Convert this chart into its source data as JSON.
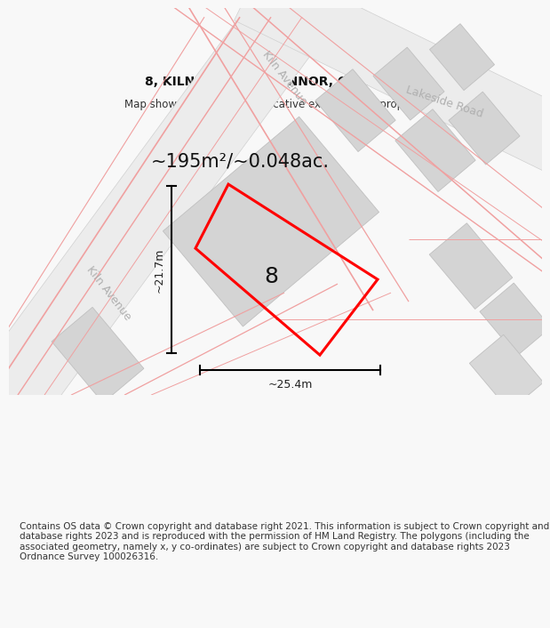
{
  "title": "8, KILN AVENUE, CHINNOR, OX39 4BZ",
  "subtitle": "Map shows position and indicative extent of the property.",
  "footer": "Contains OS data © Crown copyright and database right 2021. This information is subject to Crown copyright and database rights 2023 and is reproduced with the permission of HM Land Registry. The polygons (including the associated geometry, namely x, y co-ordinates) are subject to Crown copyright and database rights 2023 Ordnance Survey 100026316.",
  "area_text": "~195m²/~0.048ac.",
  "width_label": "~25.4m",
  "height_label": "~21.7m",
  "plot_number": "8",
  "bg_color": "#f8f8f8",
  "map_bg": "#ffffff",
  "plot_outline_color": "#ff0000",
  "pink": "#f0a0a0",
  "gray_block": "#d8d8d8",
  "gray_road": "#e0e0e0",
  "dim_color": "#222222",
  "street_color": "#b0b0b0",
  "title_fontsize": 10,
  "subtitle_fontsize": 8.5,
  "footer_fontsize": 7.5,
  "area_fontsize": 15,
  "plot_num_fontsize": 18,
  "street_fontsize": 9,
  "dim_fontsize": 9
}
